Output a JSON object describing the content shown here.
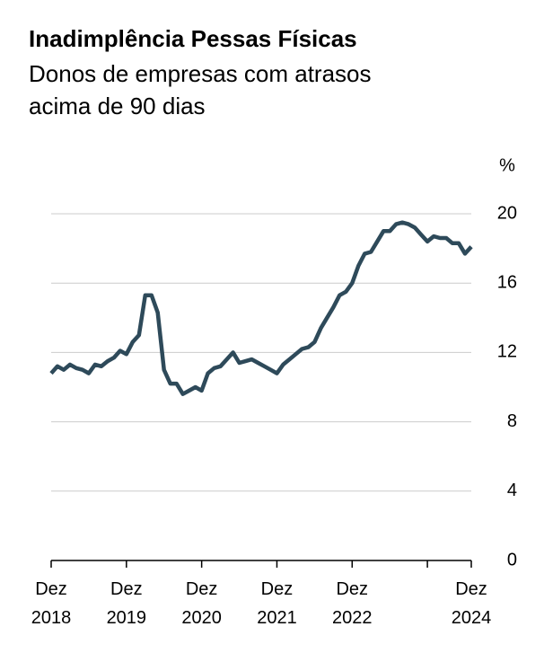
{
  "chart_data": {
    "type": "line",
    "title": "Inadimplência Pessas Físicas",
    "subtitle": "Donos de empresas com atrasos\nacima de 90 dias",
    "y_unit": "%",
    "x": [
      0,
      1,
      2,
      3,
      4,
      5,
      6,
      7,
      8,
      9,
      10,
      11,
      12,
      13,
      14,
      15,
      16,
      17,
      18,
      19,
      20,
      21,
      22,
      23,
      24,
      25,
      26,
      27,
      28,
      29,
      30,
      31,
      32,
      33,
      34,
      35,
      36,
      37,
      38,
      39,
      40,
      41,
      42,
      43,
      44,
      45,
      46,
      47,
      48,
      49,
      50,
      51,
      52,
      53,
      54,
      55,
      56,
      57,
      58,
      59,
      60,
      61,
      62,
      63,
      64,
      65,
      66,
      67
    ],
    "series": [
      {
        "color": "#2e4a5a",
        "values": [
          10.8,
          11.2,
          11.0,
          11.3,
          11.1,
          11.0,
          10.8,
          11.3,
          11.2,
          11.5,
          11.7,
          12.1,
          11.9,
          12.6,
          13.0,
          15.3,
          15.3,
          14.3,
          11.0,
          10.2,
          10.2,
          9.6,
          9.8,
          10.0,
          9.8,
          10.8,
          11.1,
          11.2,
          11.6,
          12.0,
          11.4,
          11.5,
          11.6,
          11.4,
          11.2,
          11.0,
          10.8,
          11.3,
          11.6,
          11.9,
          12.2,
          12.3,
          12.6,
          13.4,
          14.0,
          14.6,
          15.3,
          15.5,
          16.0,
          17.0,
          17.7,
          17.8,
          18.4,
          19.0,
          19.0,
          19.4,
          19.5,
          19.4,
          19.2,
          18.8,
          18.4,
          18.7,
          18.6,
          18.6,
          18.3,
          18.3,
          17.7,
          18.1
        ]
      }
    ],
    "xlim": [
      0,
      67
    ],
    "xticks": [
      {
        "value": 0,
        "label": "Dez\n2018"
      },
      {
        "value": 12,
        "label": "Dez\n2019"
      },
      {
        "value": 24,
        "label": "Dez\n2020"
      },
      {
        "value": 36,
        "label": "Dez\n2021"
      },
      {
        "value": 48,
        "label": "Dez\n2022"
      },
      {
        "value": 60,
        "label": null
      },
      {
        "value": 67,
        "label": "Dez\n2024"
      }
    ],
    "ylim": [
      0,
      20
    ],
    "yticks": [
      0,
      4,
      8,
      12,
      16,
      20
    ],
    "grid": true
  }
}
